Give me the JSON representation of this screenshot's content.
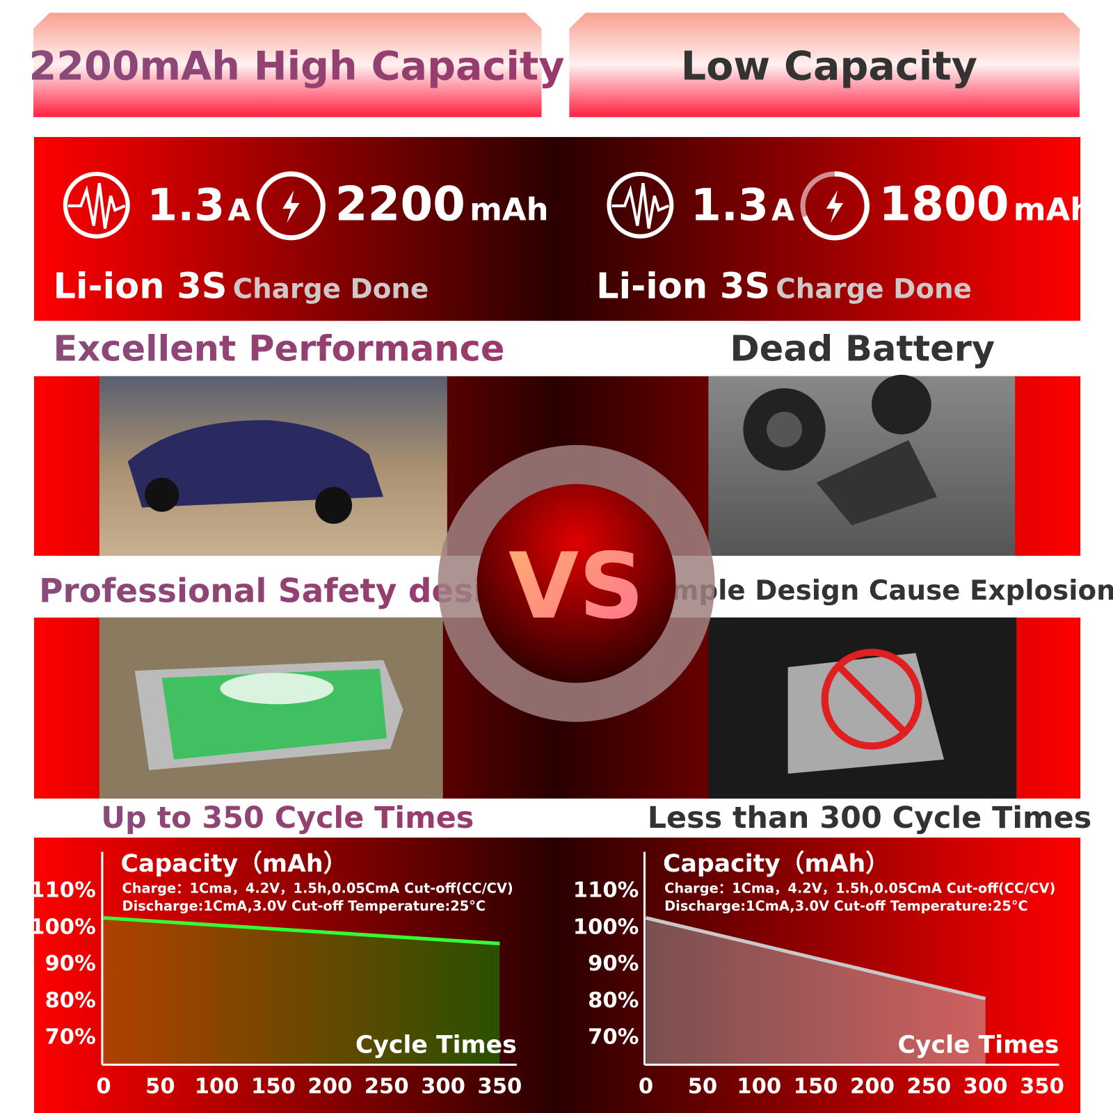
{
  "left": {
    "header": "2200mAh High Capacity",
    "current": "1.3",
    "current_unit": "A",
    "capacity": "2200",
    "capacity_unit": "mAh",
    "battery": "Li-ion 3S",
    "status": "Charge Done",
    "performance": "Excellent Performance",
    "design": "Professional Safety design",
    "cycles": "Up to 350 Cycle Times",
    "chart": {
      "type": "area",
      "title": "Capacity（mAh）",
      "note1": "Charge：1Cma，4.2V，1.5h,0.05CmA Cut-off(CC/CV)",
      "note2": "Discharge:1CmA,3.0V Cut-off   Temperature:25°C",
      "x_label": "Cycle Times",
      "x": [
        0,
        350
      ],
      "values": [
        102,
        95
      ],
      "color": "#33ff33",
      "xlim": [
        0,
        350
      ],
      "ylim": [
        62,
        120
      ],
      "xticks": [
        0,
        50,
        100,
        150,
        200,
        250,
        300,
        350
      ],
      "yticks": [
        {
          "value": 70,
          "label": "70%"
        },
        {
          "value": 80,
          "label": "80%"
        },
        {
          "value": 90,
          "label": "90%"
        },
        {
          "value": 100,
          "label": "100%"
        },
        {
          "value": 110,
          "label": "110%"
        }
      ]
    }
  },
  "right": {
    "header": "Low Capacity",
    "current": "1.3",
    "current_unit": "A",
    "capacity": "1800",
    "capacity_unit": "mAh",
    "battery": "Li-ion 3S",
    "status": "Charge Done",
    "performance": "Dead Battery",
    "design": "Simple Design Cause Explosion",
    "cycles": "Less than 300 Cycle Times",
    "chart": {
      "type": "area",
      "title": "Capacity（mAh）",
      "note1": "Charge：1Cma，4.2V，1.5h,0.05CmA Cut-off(CC/CV)",
      "note2": "Discharge:1CmA,3.0V Cut-off   Temperature:25°C",
      "x_label": "Cycle Times",
      "x": [
        0,
        300
      ],
      "values": [
        102,
        80
      ],
      "color": "#c8c8c8",
      "xlim": [
        0,
        350
      ],
      "ylim": [
        62,
        120
      ],
      "xticks": [
        0,
        50,
        100,
        150,
        200,
        250,
        300,
        350
      ],
      "yticks": [
        {
          "value": 70,
          "label": "70%"
        },
        {
          "value": 80,
          "label": "80%"
        },
        {
          "value": 90,
          "label": "90%"
        },
        {
          "value": 100,
          "label": "100%"
        },
        {
          "value": 110,
          "label": "110%"
        }
      ]
    }
  },
  "vs": "VS"
}
